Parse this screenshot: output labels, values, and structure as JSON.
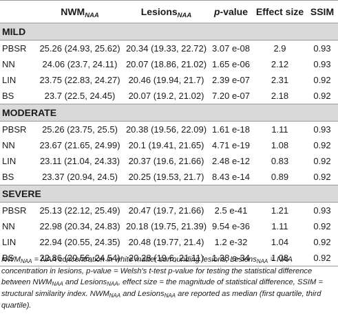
{
  "header": {
    "method": "",
    "nwm": "NWM",
    "nwm_sub": "NAA",
    "lesions": "Lesions",
    "lesions_sub": "NAA",
    "pvalue_p": "p",
    "pvalue_rest": "-value",
    "effect": "Effect size",
    "ssim": "SSIM"
  },
  "sections": [
    {
      "title": "MILD",
      "rows": [
        {
          "method": "PBSR",
          "nwm": "25.26 (24.93, 25.62)",
          "lesions": "20.34 (19.33, 22.72)",
          "p": "3.07 e-08",
          "effect": "2.9",
          "ssim": "0.93"
        },
        {
          "method": "NN",
          "nwm": "24.06 (23.7, 24.11)",
          "lesions": "20.07 (18.86, 21.02)",
          "p": "1.65 e-06",
          "effect": "2.12",
          "ssim": "0.93"
        },
        {
          "method": "LIN",
          "nwm": "23.75 (22.83, 24.27)",
          "lesions": "20.46 (19.94, 21.7)",
          "p": "2.39 e-07",
          "effect": "2.31",
          "ssim": "0.92"
        },
        {
          "method": "BS",
          "nwm": "23.7 (22.5, 24.45)",
          "lesions": "20.07 (19.2, 21.02)",
          "p": "7.20 e-07",
          "effect": "2.18",
          "ssim": "0.92"
        }
      ]
    },
    {
      "title": "MODERATE",
      "rows": [
        {
          "method": "PBSR",
          "nwm": "25.26 (23.75, 25.5)",
          "lesions": "20.38 (19.56, 22.09)",
          "p": "1.61 e-18",
          "effect": "1.11",
          "ssim": "0.93"
        },
        {
          "method": "NN",
          "nwm": "23.67 (21.65, 24.99)",
          "lesions": "20.1 (19.41, 21.65)",
          "p": "4.71 e-19",
          "effect": "1.08",
          "ssim": "0.92"
        },
        {
          "method": "LIN",
          "nwm": "23.11 (21.04, 24.33)",
          "lesions": "20.37 (19.6, 21.66)",
          "p": "2.48 e-12",
          "effect": "0.83",
          "ssim": "0.92"
        },
        {
          "method": "BS",
          "nwm": "23.37 (20.94, 24.5)",
          "lesions": "20.25 (19.53, 21.7)",
          "p": "8.43 e-14",
          "effect": "0.89",
          "ssim": "0.92"
        }
      ]
    },
    {
      "title": "SEVERE",
      "rows": [
        {
          "method": "PBSR",
          "nwm": "25.13 (22.12, 25.49)",
          "lesions": "20.47 (19.7, 21.66)",
          "p": "2.5 e-41",
          "effect": "1.21",
          "ssim": "0.93"
        },
        {
          "method": "NN",
          "nwm": "22.98 (20.34, 24.83)",
          "lesions": "20.18 (19.75, 21.39)",
          "p": "9.54 e-36",
          "effect": "1.11",
          "ssim": "0.92"
        },
        {
          "method": "LIN",
          "nwm": "22.94 (20.55, 24.35)",
          "lesions": "20.48 (19.77, 21.4)",
          "p": "1.2 e-32",
          "effect": "1.04",
          "ssim": "0.92"
        },
        {
          "method": "BS",
          "nwm": "22.86 (20.56, 24.54)",
          "lesions": "20.28 (19.6, 21.11)",
          "p": "1.38 e-34",
          "effect": "1.08",
          "ssim": "0.92"
        }
      ]
    }
  ],
  "footnote": {
    "t1": "NWM",
    "s1": "NAA",
    "t2": " = NAA concentration in white matter surrounding lesions, Lesions",
    "s2": "NAA",
    "t3": " = NAA concentration in lesions, ",
    "t4": "p",
    "t5": "-value = Welsh's t-test ",
    "t6": "p",
    "t7": "-value for testing the statistical difference between NWM",
    "s3": "NAA",
    "t8": " and Lesions",
    "s4": "NAA",
    "t9": ", effect size = the magnitude of statistical difference, SSIM = structural similarity index. NWM",
    "s5": "NAA",
    "t10": " and Lesions",
    "s6": "NAA",
    "t11": " are reported as median (first quartile, third quartile)."
  }
}
